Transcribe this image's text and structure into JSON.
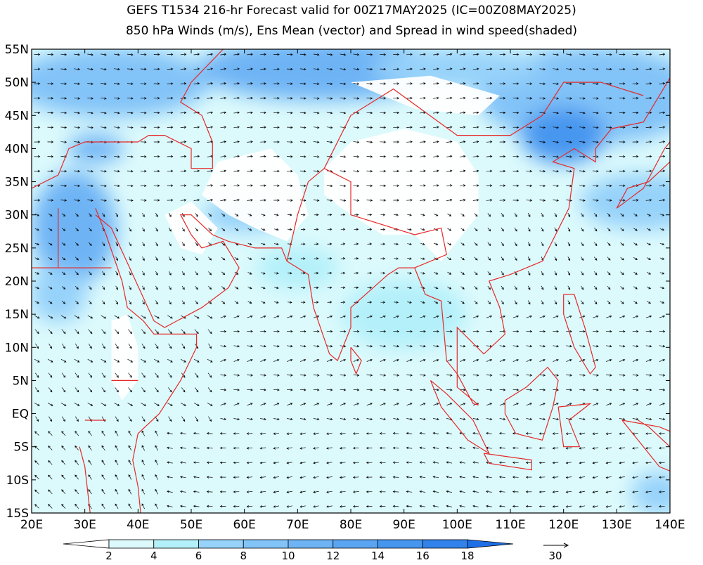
{
  "header": {
    "line1": "GEFS T1534 216-hr Forecast valid for 00Z17MAY2025 (IC=00Z08MAY2025)",
    "line2": "850 hPa Winds (m/s), Ens Mean (vector) and Spread in wind speed(shaded)"
  },
  "map": {
    "lon_ticks": [
      "20E",
      "30E",
      "40E",
      "50E",
      "60E",
      "70E",
      "80E",
      "90E",
      "100E",
      "110E",
      "120E",
      "130E",
      "140E"
    ],
    "lat_ticks": [
      "15S",
      "10S",
      "5S",
      "EQ",
      "5N",
      "10N",
      "15N",
      "20N",
      "25N",
      "30N",
      "35N",
      "40N",
      "45N",
      "50N",
      "55N"
    ]
  },
  "colorbar": {
    "levels": [
      2,
      4,
      6,
      8,
      10,
      12,
      14,
      16,
      18
    ],
    "colors": [
      "#ffffff",
      "#dcfafc",
      "#b4f0fa",
      "#96d2fa",
      "#82c3f8",
      "#6eb4f5",
      "#5aa5f2",
      "#4696ef",
      "#3282eb",
      "#1e6ee6"
    ]
  },
  "reference_vector": {
    "label": "30"
  }
}
